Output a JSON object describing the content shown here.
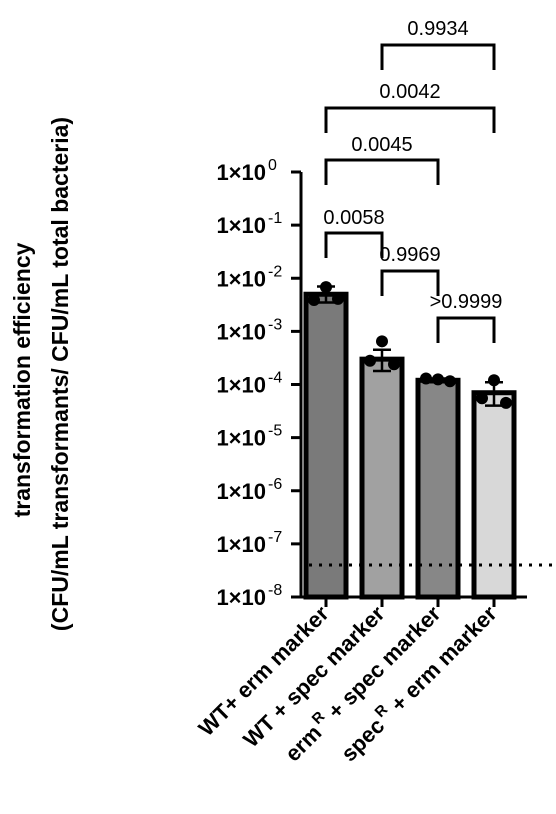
{
  "chart_data": {
    "type": "bar",
    "ylabel_line1": "transformation efficiency",
    "ylabel_line2": "(CFU/mL transformants/ CFU/mL total bacteria)",
    "yscale": "log",
    "ylim": [
      1e-08,
      1
    ],
    "yticks": [
      {
        "value": 1,
        "base": "1×10",
        "exp": "0"
      },
      {
        "value": 0.1,
        "base": "1×10",
        "exp": "-1"
      },
      {
        "value": 0.01,
        "base": "1×10",
        "exp": "-2"
      },
      {
        "value": 0.001,
        "base": "1×10",
        "exp": "-3"
      },
      {
        "value": 0.0001,
        "base": "1×10",
        "exp": "-4"
      },
      {
        "value": 1e-05,
        "base": "1×10",
        "exp": "-5"
      },
      {
        "value": 1e-06,
        "base": "1×10",
        "exp": "-6"
      },
      {
        "value": 1e-07,
        "base": "1×10",
        "exp": "-7"
      },
      {
        "value": 1e-08,
        "base": "1×10",
        "exp": "-8"
      }
    ],
    "categories": [
      {
        "text": "WT+ erm marker"
      },
      {
        "text": "WT + spec marker"
      },
      {
        "pre": "erm",
        "sup": "R",
        "post": " + spec marker"
      },
      {
        "pre": "spec",
        "sup": "R",
        "post": " + erm marker"
      }
    ],
    "values": [
      0.005,
      0.0003,
      0.00012,
      7e-05
    ],
    "error": [
      [
        0.0035,
        0.007
      ],
      [
        0.00018,
        0.00045
      ],
      [
        0.00011,
        0.00013
      ],
      [
        4e-05,
        0.00011
      ]
    ],
    "points": [
      [
        0.0068,
        0.0039,
        0.0041
      ],
      [
        0.00065,
        0.00028,
        0.00024
      ],
      [
        0.000125,
        0.00013,
        0.000115
      ],
      [
        0.00012,
        5.5e-05,
        4.5e-05
      ]
    ],
    "bar_colors": [
      "#7a7a7a",
      "#a1a1a1",
      "#878787",
      "#d8d8d8"
    ],
    "detection_limit": 4e-08,
    "comparisons": [
      {
        "from": 0,
        "to": 1,
        "label": "0.0058"
      },
      {
        "from": 1,
        "to": 2,
        "label": "0.9969"
      },
      {
        "from": 2,
        "to": 3,
        "label": ">0.9999"
      },
      {
        "from": 0,
        "to": 2,
        "label": "0.0045"
      },
      {
        "from": 0,
        "to": 3,
        "label": "0.0042"
      },
      {
        "from": 1,
        "to": 3,
        "label": "0.9934"
      }
    ]
  }
}
